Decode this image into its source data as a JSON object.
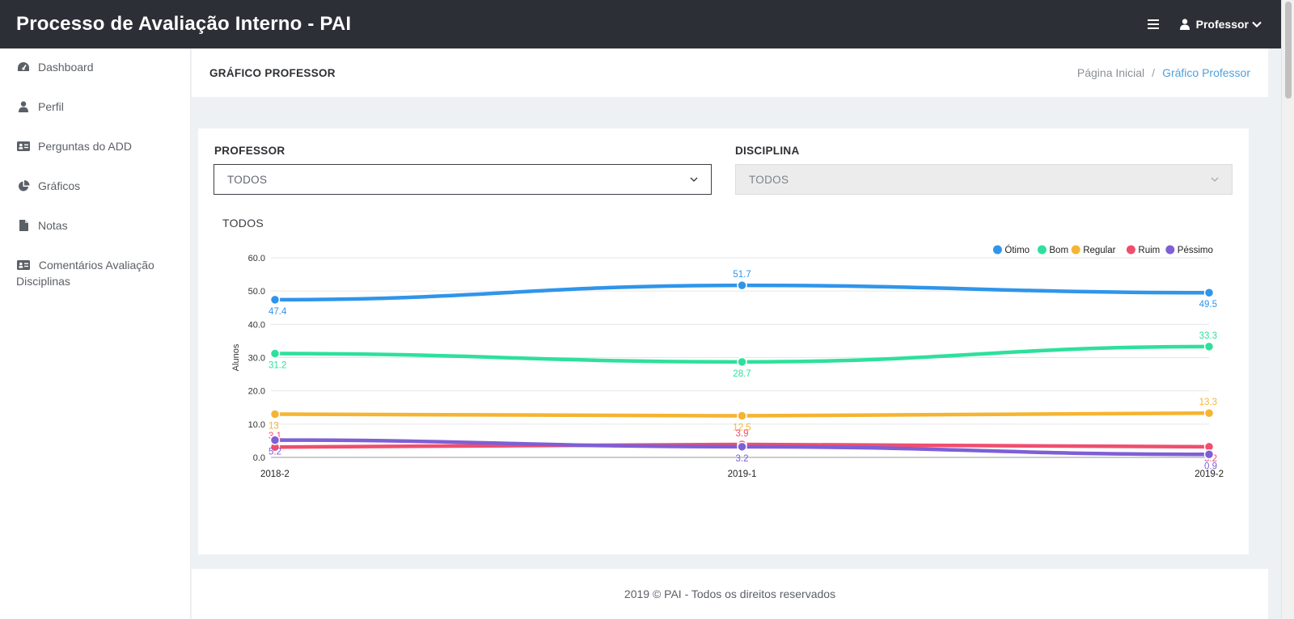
{
  "header": {
    "title": "Processo de Avaliação Interno - PAI",
    "user_label": "Professor"
  },
  "sidebar": {
    "items": [
      {
        "label": "Dashboard",
        "icon": "dashboard-icon"
      },
      {
        "label": "Perfil",
        "icon": "user-icon"
      },
      {
        "label": "Perguntas do ADD",
        "icon": "id-card-icon"
      },
      {
        "label": "Gráficos",
        "icon": "pie-chart-icon"
      },
      {
        "label": "Notas",
        "icon": "file-icon"
      },
      {
        "label": "Comentários Avaliação Disciplinas",
        "icon": "id-card-icon"
      }
    ]
  },
  "page": {
    "title": "GRÁFICO PROFESSOR",
    "breadcrumb": {
      "home": "Página Inicial",
      "separator": "/",
      "current": "Gráfico Professor"
    }
  },
  "filters": {
    "professor": {
      "label": "PROFESSOR",
      "value": "TODOS"
    },
    "disciplina": {
      "label": "DISCIPLINA",
      "value": "TODOS"
    }
  },
  "chart_subtitle": "TODOS",
  "chart_data": {
    "type": "line",
    "categories": [
      "2018-2",
      "2019-1",
      "2019-2"
    ],
    "ylabel": "Alunos",
    "ylim": [
      0,
      60
    ],
    "yticks": [
      "0.0",
      "10.0",
      "20.0",
      "30.0",
      "40.0",
      "50.0",
      "60.0"
    ],
    "legend_position": "top-right",
    "grid": true,
    "series": [
      {
        "name": "Ótimo",
        "color": "#2f95ea",
        "values": [
          47.4,
          51.7,
          49.5
        ],
        "labels": [
          "47.4",
          "51.7",
          "49.5"
        ]
      },
      {
        "name": "Bom",
        "color": "#2ee09c",
        "values": [
          31.2,
          28.7,
          33.3
        ],
        "labels": [
          "31.2",
          "28.7",
          "33.3"
        ]
      },
      {
        "name": "Regular",
        "color": "#f5b431",
        "values": [
          13,
          12.5,
          13.3
        ],
        "labels": [
          "13",
          "12.5",
          "13.3"
        ]
      },
      {
        "name": "Ruim",
        "color": "#f04e6e",
        "values": [
          3.1,
          3.9,
          3.2
        ],
        "labels": [
          "3.1",
          "3.9",
          "3.2"
        ]
      },
      {
        "name": "Péssimo",
        "color": "#7e5fd6",
        "values": [
          5.2,
          3.2,
          0.9
        ],
        "labels": [
          "5.2",
          "3.2",
          "0.9"
        ]
      }
    ]
  },
  "footer": {
    "text": "2019 © PAI - Todos os direitos reservados"
  }
}
